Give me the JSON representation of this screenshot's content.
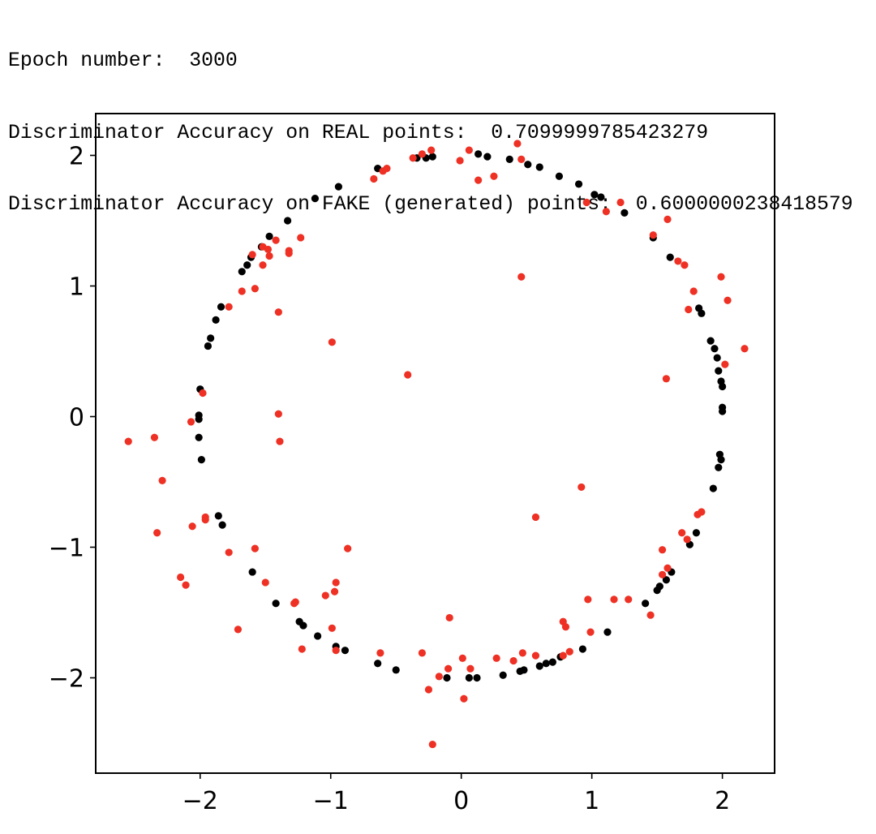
{
  "output": {
    "epoch_label": "Epoch number:",
    "epoch_value": "3000",
    "real_label": "Discriminator Accuracy on REAL points:",
    "real_value": "0.7099999785423279",
    "fake_label": "Discriminator Accuracy on FAKE (generated) points:",
    "fake_value": "0.6000000238418579"
  },
  "chart_data": {
    "type": "scatter",
    "title": "",
    "xlabel": "",
    "ylabel": "",
    "xlim": [
      -2.8,
      2.4
    ],
    "ylim": [
      -2.73,
      2.32
    ],
    "xticks": [
      -2,
      -1,
      0,
      1,
      2
    ],
    "yticks": [
      -2,
      -1,
      0,
      1,
      2
    ],
    "xtick_labels": [
      "−2",
      "−1",
      "0",
      "1",
      "2"
    ],
    "ytick_labels": [
      "−2",
      "−1",
      "0",
      "1",
      "2"
    ],
    "grid": false,
    "series": [
      {
        "color": "#000000",
        "points": [
          [
            -2.0,
            0.21
          ],
          [
            -2.01,
            0.01
          ],
          [
            -2.01,
            -0.02
          ],
          [
            -2.01,
            -0.16
          ],
          [
            -1.99,
            -0.33
          ],
          [
            -1.86,
            -0.76
          ],
          [
            -1.83,
            -0.83
          ],
          [
            -1.94,
            0.54
          ],
          [
            -1.92,
            0.6
          ],
          [
            -1.88,
            0.74
          ],
          [
            -1.84,
            0.84
          ],
          [
            -1.68,
            1.11
          ],
          [
            -1.64,
            1.16
          ],
          [
            -1.61,
            1.22
          ],
          [
            -1.53,
            1.3
          ],
          [
            -1.47,
            1.38
          ],
          [
            -1.33,
            1.5
          ],
          [
            -1.12,
            1.67
          ],
          [
            -0.94,
            1.76
          ],
          [
            -0.64,
            1.9
          ],
          [
            -0.34,
            1.98
          ],
          [
            -0.27,
            1.98
          ],
          [
            -0.22,
            1.99
          ],
          [
            0.13,
            2.01
          ],
          [
            0.2,
            1.99
          ],
          [
            0.37,
            1.97
          ],
          [
            0.51,
            1.93
          ],
          [
            0.6,
            1.91
          ],
          [
            0.75,
            1.84
          ],
          [
            0.9,
            1.78
          ],
          [
            1.02,
            1.7
          ],
          [
            1.07,
            1.68
          ],
          [
            1.25,
            1.56
          ],
          [
            1.47,
            1.37
          ],
          [
            1.6,
            1.22
          ],
          [
            1.82,
            0.83
          ],
          [
            1.84,
            0.79
          ],
          [
            1.91,
            0.58
          ],
          [
            1.94,
            0.52
          ],
          [
            1.96,
            0.45
          ],
          [
            1.97,
            0.35
          ],
          [
            1.99,
            0.27
          ],
          [
            2.0,
            0.23
          ],
          [
            2.0,
            0.07
          ],
          [
            2.0,
            0.04
          ],
          [
            1.98,
            -0.29
          ],
          [
            1.99,
            -0.33
          ],
          [
            1.97,
            -0.39
          ],
          [
            1.93,
            -0.55
          ],
          [
            1.8,
            -0.89
          ],
          [
            1.75,
            -0.98
          ],
          [
            1.61,
            -1.19
          ],
          [
            1.57,
            -1.25
          ],
          [
            1.52,
            -1.3
          ],
          [
            1.5,
            -1.33
          ],
          [
            1.41,
            -1.43
          ],
          [
            1.12,
            -1.65
          ],
          [
            0.93,
            -1.78
          ],
          [
            0.76,
            -1.84
          ],
          [
            0.7,
            -1.88
          ],
          [
            0.65,
            -1.89
          ],
          [
            0.6,
            -1.91
          ],
          [
            0.48,
            -1.94
          ],
          [
            0.45,
            -1.95
          ],
          [
            0.32,
            -1.98
          ],
          [
            0.12,
            -2.0
          ],
          [
            0.06,
            -2.0
          ],
          [
            -0.11,
            -2.0
          ],
          [
            -0.5,
            -1.94
          ],
          [
            -0.64,
            -1.89
          ],
          [
            -0.89,
            -1.79
          ],
          [
            -0.96,
            -1.76
          ],
          [
            -1.1,
            -1.68
          ],
          [
            -1.21,
            -1.6
          ],
          [
            -1.24,
            -1.57
          ],
          [
            -1.42,
            -1.43
          ],
          [
            -1.6,
            -1.19
          ]
        ]
      },
      {
        "color": "#ee3124",
        "points": [
          [
            -2.55,
            -0.19
          ],
          [
            -2.35,
            -0.16
          ],
          [
            -2.29,
            -0.49
          ],
          [
            -2.33,
            -0.89
          ],
          [
            -2.15,
            -1.23
          ],
          [
            -2.11,
            -1.29
          ],
          [
            -2.07,
            -0.04
          ],
          [
            -1.98,
            0.18
          ],
          [
            -2.06,
            -0.84
          ],
          [
            -1.96,
            -0.79
          ],
          [
            -1.96,
            -0.77
          ],
          [
            -1.78,
            -1.04
          ],
          [
            -1.78,
            0.84
          ],
          [
            -1.68,
            0.96
          ],
          [
            -1.71,
            -1.63
          ],
          [
            -1.58,
            -1.01
          ],
          [
            -1.58,
            0.98
          ],
          [
            -1.6,
            1.24
          ],
          [
            -1.52,
            1.16
          ],
          [
            -1.52,
            1.3
          ],
          [
            -1.48,
            1.28
          ],
          [
            -1.47,
            1.23
          ],
          [
            -1.5,
            -1.27
          ],
          [
            -1.42,
            1.35
          ],
          [
            -1.4,
            0.8
          ],
          [
            -1.4,
            0.02
          ],
          [
            -1.39,
            -0.19
          ],
          [
            -1.32,
            1.27
          ],
          [
            -1.32,
            1.25
          ],
          [
            -1.23,
            1.37
          ],
          [
            -1.28,
            -1.43
          ],
          [
            -1.27,
            -1.42
          ],
          [
            -1.22,
            -1.78
          ],
          [
            -1.04,
            -1.37
          ],
          [
            -0.99,
            0.57
          ],
          [
            -0.99,
            -1.62
          ],
          [
            -0.97,
            -1.34
          ],
          [
            -0.96,
            -1.27
          ],
          [
            -0.96,
            -1.79
          ],
          [
            -0.87,
            -1.01
          ],
          [
            -0.67,
            1.82
          ],
          [
            -0.62,
            -1.81
          ],
          [
            -0.6,
            1.88
          ],
          [
            -0.57,
            1.9
          ],
          [
            -0.41,
            0.32
          ],
          [
            -0.37,
            1.98
          ],
          [
            -0.3,
            2.01
          ],
          [
            -0.3,
            -1.81
          ],
          [
            -0.23,
            2.04
          ],
          [
            -0.25,
            -2.09
          ],
          [
            -0.22,
            -2.51
          ],
          [
            -0.17,
            -1.99
          ],
          [
            -0.1,
            -1.93
          ],
          [
            -0.09,
            -1.54
          ],
          [
            -0.01,
            1.96
          ],
          [
            0.01,
            -1.85
          ],
          [
            0.02,
            -2.16
          ],
          [
            0.06,
            2.04
          ],
          [
            0.07,
            -1.93
          ],
          [
            0.13,
            1.81
          ],
          [
            0.25,
            1.84
          ],
          [
            0.27,
            -1.85
          ],
          [
            0.4,
            -1.87
          ],
          [
            0.43,
            2.09
          ],
          [
            0.46,
            1.97
          ],
          [
            0.46,
            1.07
          ],
          [
            0.47,
            -1.81
          ],
          [
            0.57,
            -0.77
          ],
          [
            0.57,
            -1.83
          ],
          [
            0.78,
            -1.83
          ],
          [
            0.78,
            -1.57
          ],
          [
            0.8,
            -1.61
          ],
          [
            0.83,
            -1.8
          ],
          [
            0.92,
            -0.54
          ],
          [
            0.96,
            1.64
          ],
          [
            0.97,
            -1.4
          ],
          [
            0.99,
            -1.65
          ],
          [
            1.11,
            1.57
          ],
          [
            1.17,
            -1.4
          ],
          [
            1.22,
            1.64
          ],
          [
            1.28,
            -1.4
          ],
          [
            1.45,
            -1.52
          ],
          [
            1.47,
            1.39
          ],
          [
            1.54,
            -1.02
          ],
          [
            1.54,
            -1.21
          ],
          [
            1.58,
            -1.16
          ],
          [
            1.57,
            0.29
          ],
          [
            1.58,
            1.51
          ],
          [
            1.66,
            1.19
          ],
          [
            1.71,
            1.16
          ],
          [
            1.69,
            -0.89
          ],
          [
            1.74,
            0.82
          ],
          [
            1.73,
            -0.94
          ],
          [
            1.78,
            0.96
          ],
          [
            1.81,
            -0.75
          ],
          [
            1.84,
            -0.73
          ],
          [
            1.99,
            1.07
          ],
          [
            2.02,
            0.4
          ],
          [
            2.04,
            0.89
          ],
          [
            2.17,
            0.52
          ]
        ]
      }
    ]
  }
}
